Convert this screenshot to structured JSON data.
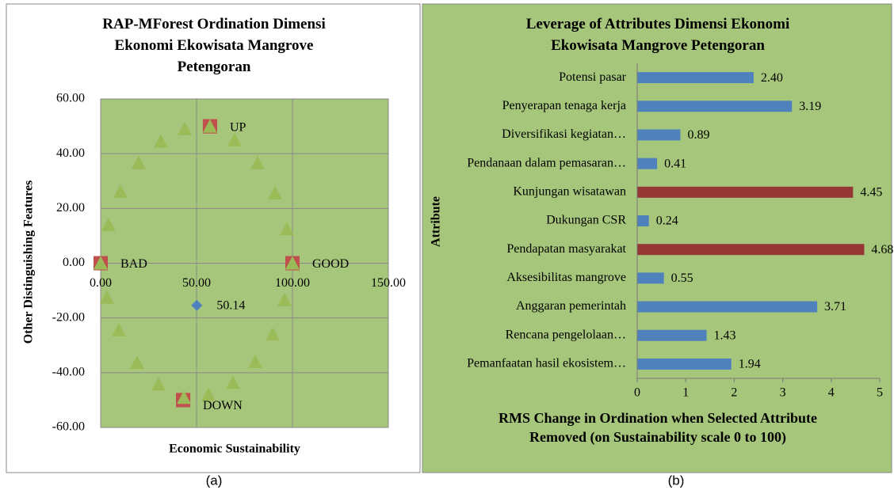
{
  "chart_data": [
    {
      "type": "scatter",
      "title": "RAP-MForest Ordination Dimensi Ekonomi Ekowisata Mangrove Petengoran",
      "x_label": "Economic Sustainability",
      "y_label": "Other Distinguishing Features",
      "plot_background": "#a6c77b",
      "grid": true,
      "xlim": [
        0,
        150
      ],
      "ylim": [
        -60,
        60
      ],
      "xticks": [
        {
          "value": 0,
          "label": "0.00"
        },
        {
          "value": 50,
          "label": "50.00"
        },
        {
          "value": 100,
          "label": "100.00"
        },
        {
          "value": 150,
          "label": "150.00"
        }
      ],
      "yticks": [
        {
          "value": -60,
          "label": "-60.00"
        },
        {
          "value": -40,
          "label": "-40.00"
        },
        {
          "value": -20,
          "label": "-20.00"
        },
        {
          "value": 0,
          "label": "0.00"
        },
        {
          "value": 20,
          "label": "20.00"
        },
        {
          "value": 40,
          "label": "40.00"
        },
        {
          "value": 60,
          "label": "60.00"
        }
      ],
      "series": [
        {
          "marker": "triangle",
          "color": "#9bbb59",
          "x": [
            0,
            4.1,
            10.3,
            19.8,
            31.4,
            43.8,
            57,
            69.8,
            81.8,
            90.9,
            97.1,
            100,
            95.9,
            89.7,
            80.6,
            69,
            56.2,
            43.4,
            30.2,
            19,
            9.5,
            3.3
          ],
          "y": [
            0,
            14,
            26.2,
            36.6,
            44.5,
            49.1,
            50,
            45,
            36.6,
            25.6,
            12.5,
            0,
            -13.4,
            -25.9,
            -36,
            -43.6,
            -48,
            -49.1,
            -44.2,
            -36.3,
            -24.4,
            -12.5
          ]
        },
        {
          "marker": "square",
          "color": "#c0504d",
          "x": [
            0,
            100,
            57,
            43
          ],
          "y": [
            0,
            0,
            50,
            -50
          ],
          "labels": [
            "BAD",
            "GOOD",
            "UP",
            "DOWN"
          ]
        },
        {
          "marker": "diamond",
          "color": "#4f81bd",
          "x": [
            50.14
          ],
          "y": [
            -15.4
          ],
          "label_x": true
        }
      ],
      "caption": "(a)"
    },
    {
      "type": "bar",
      "orientation": "horizontal",
      "title": "Leverage of Attributes Dimensi Ekonomi Ekowisata Mangrove Petengoran",
      "x_label": "RMS Change in Ordination when Selected Attribute Removed (on Sustainability scale 0 to 100)",
      "y_label": "Attribute",
      "background": "#a6c77b",
      "categories": [
        "Potensi pasar",
        "Penyerapan tenaga kerja",
        "Diversifikasi kegiatan…",
        "Pendanaan dalam pemasaran…",
        "Kunjungan wisatawan",
        "Dukungan CSR",
        "Pendapatan masyarakat",
        "Aksesibilitas mangrove",
        "Anggaran pemerintah",
        "Rencana pengelolaan…",
        "Pemanfaatan hasil ekosistem…"
      ],
      "values": [
        2.4,
        3.19,
        0.89,
        0.41,
        4.45,
        0.24,
        4.68,
        0.55,
        3.71,
        1.43,
        1.94
      ],
      "value_labels": [
        "2.40",
        "3.19",
        "0.89",
        "0.41",
        "4.45",
        "0.24",
        "4.68",
        "0.55",
        "3.71",
        "1.43",
        "1.94"
      ],
      "colors": [
        "#4f81bd",
        "#4f81bd",
        "#4f81bd",
        "#4f81bd",
        "#953735",
        "#4f81bd",
        "#953735",
        "#4f81bd",
        "#4f81bd",
        "#4f81bd",
        "#4f81bd"
      ],
      "xlim": [
        0,
        5
      ],
      "xticks": [
        0,
        1,
        2,
        3,
        4,
        5
      ],
      "caption": "(b)"
    }
  ]
}
